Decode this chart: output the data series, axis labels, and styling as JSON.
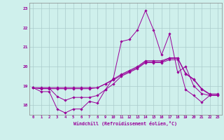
{
  "xlabel": "Windchill (Refroidissement éolien,°C)",
  "background_color": "#cff0ec",
  "grid_color": "#aacccc",
  "line_color": "#990099",
  "xlim": [
    -0.5,
    23.5
  ],
  "ylim": [
    17.5,
    23.3
  ],
  "xticks": [
    0,
    1,
    2,
    3,
    4,
    5,
    6,
    7,
    8,
    9,
    10,
    11,
    12,
    13,
    14,
    15,
    16,
    17,
    18,
    19,
    20,
    21,
    22,
    23
  ],
  "yticks": [
    18,
    19,
    20,
    21,
    22,
    23
  ],
  "x": [
    0,
    1,
    2,
    3,
    4,
    5,
    6,
    7,
    8,
    9,
    10,
    11,
    12,
    13,
    14,
    15,
    16,
    17,
    18,
    19,
    20,
    21,
    22,
    23
  ],
  "line1": [
    18.9,
    18.7,
    18.7,
    17.8,
    17.6,
    17.8,
    17.8,
    18.2,
    18.1,
    18.8,
    19.4,
    21.3,
    21.4,
    21.9,
    22.9,
    21.9,
    20.6,
    21.7,
    19.7,
    20.0,
    19.0,
    18.6,
    18.5,
    18.5
  ],
  "line2": [
    18.9,
    18.85,
    18.85,
    18.85,
    18.85,
    18.85,
    18.85,
    18.85,
    18.9,
    19.1,
    19.35,
    19.6,
    19.8,
    20.0,
    20.3,
    20.3,
    20.3,
    20.45,
    20.45,
    19.65,
    19.35,
    18.85,
    18.58,
    18.58
  ],
  "line3": [
    18.9,
    18.9,
    18.9,
    18.9,
    18.9,
    18.9,
    18.9,
    18.9,
    18.9,
    19.1,
    19.3,
    19.55,
    19.75,
    19.95,
    20.25,
    20.25,
    20.25,
    20.42,
    20.42,
    19.62,
    19.32,
    18.82,
    18.55,
    18.55
  ],
  "line4": [
    18.9,
    18.88,
    18.88,
    18.45,
    18.25,
    18.4,
    18.4,
    18.4,
    18.5,
    18.8,
    19.1,
    19.5,
    19.7,
    19.9,
    20.2,
    20.2,
    20.2,
    20.35,
    20.35,
    18.8,
    18.5,
    18.15,
    18.5,
    18.5
  ]
}
